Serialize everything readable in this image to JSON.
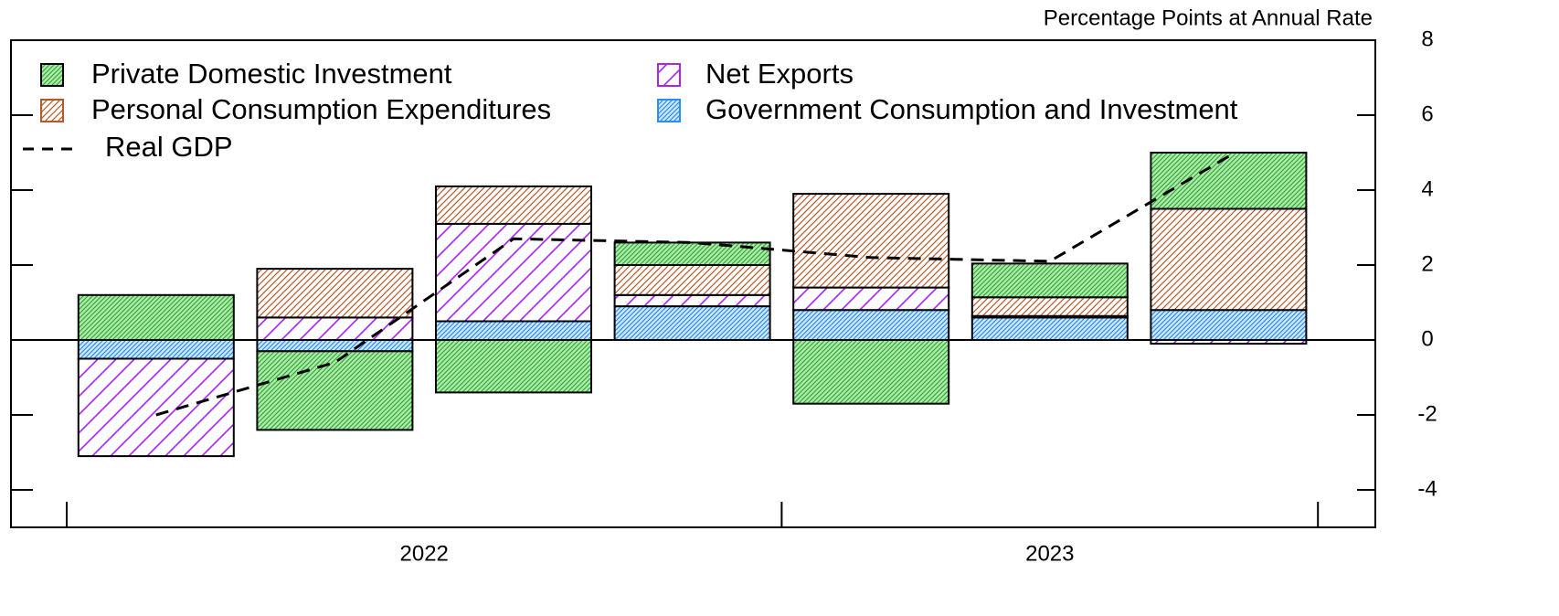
{
  "chart_data": {
    "type": "stacked_bar",
    "title": "Percentage Points at Annual Rate",
    "categories": [
      null,
      null,
      null,
      null,
      null,
      null,
      null
    ],
    "x_group_labels": [
      "2022",
      "2023"
    ],
    "series": [
      {
        "name": "Private Domestic Investment",
        "color": "#3fa33f",
        "background": "#a8eea8",
        "values": [
          1.2,
          -2.1,
          -1.4,
          0.6,
          -1.7,
          0.9,
          1.5
        ]
      },
      {
        "name": "Personal Consumption Expenditures",
        "color": "#b4592a",
        "background": "#ffffff",
        "values": [
          0.0,
          1.3,
          1.0,
          0.8,
          2.5,
          0.5,
          2.7
        ]
      },
      {
        "name": "Net Exports",
        "color": "#a726e8",
        "background": "#ffffff",
        "values": [
          -2.6,
          0.6,
          2.6,
          0.3,
          0.6,
          0.04,
          -0.1
        ]
      },
      {
        "name": "Government Consumption and Investment",
        "color": "#2a8ff0",
        "background": "#cfe6ff",
        "values": [
          -0.5,
          -0.3,
          0.5,
          0.9,
          0.8,
          0.6,
          0.8
        ]
      }
    ],
    "line": {
      "name": "Real GDP",
      "color": "#000000",
      "values": [
        -2.0,
        -0.6,
        2.7,
        2.6,
        2.2,
        2.1,
        4.9
      ]
    },
    "ylim": [
      -5,
      8
    ],
    "yticks": [
      -4,
      -2,
      0,
      2,
      4,
      6,
      8
    ]
  }
}
